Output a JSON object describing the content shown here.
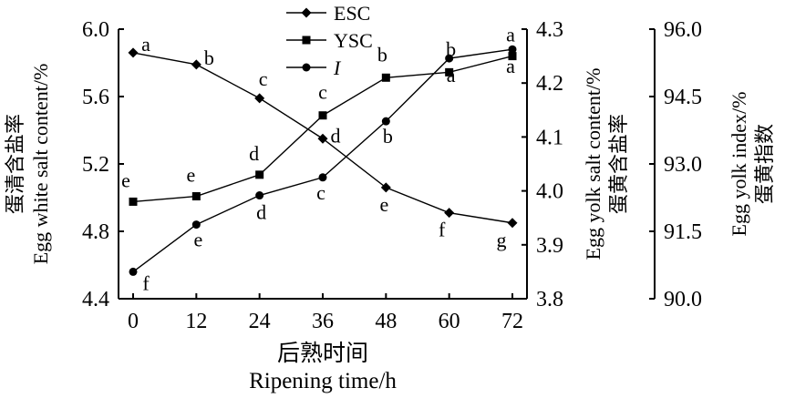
{
  "chart_data": {
    "type": "line",
    "x": [
      0,
      12,
      24,
      36,
      48,
      60,
      72
    ],
    "xlabel": [
      "后熟时间",
      "Ripening time/h"
    ],
    "axes": {
      "left": {
        "label": [
          "蛋清含盐率",
          "Egg white salt content/%"
        ],
        "ylim": [
          4.4,
          6.0
        ],
        "ticks": [
          "4.4",
          "4.8",
          "5.2",
          "5.6",
          "6.0"
        ]
      },
      "right1": {
        "label": [
          "Egg yolk salt content/%",
          "蛋黄含盐率"
        ],
        "ylim": [
          3.8,
          4.3
        ],
        "ticks": [
          "3.8",
          "3.9",
          "4.0",
          "4.1",
          "4.2",
          "4.3"
        ]
      },
      "right2": {
        "label": [
          "Egg yolk index/%",
          "蛋黄指数"
        ],
        "ylim": [
          90.0,
          96.0
        ],
        "ticks": [
          "90.0",
          "91.5",
          "93.0",
          "94.5",
          "96.0"
        ]
      }
    },
    "x_ticks": [
      "0",
      "12",
      "24",
      "36",
      "48",
      "60",
      "72"
    ],
    "grid": false,
    "legend_position": "top-center",
    "series": [
      {
        "name": "ESC",
        "axis": "left",
        "marker": "diamond",
        "values": [
          5.86,
          5.79,
          5.59,
          5.35,
          5.06,
          4.91,
          4.85
        ],
        "labels": [
          "a",
          "b",
          "c",
          "d",
          "e",
          "f",
          "g"
        ]
      },
      {
        "name": "YSC",
        "axis": "right1",
        "marker": "square",
        "values": [
          3.98,
          3.99,
          4.03,
          4.14,
          4.21,
          4.22,
          4.25
        ],
        "labels": [
          "e",
          "e",
          "d",
          "c",
          "b",
          "b",
          "a"
        ]
      },
      {
        "name": "I",
        "axis": "right2",
        "marker": "circle",
        "values": [
          90.6,
          91.65,
          92.3,
          92.7,
          93.95,
          95.35,
          95.55
        ],
        "labels": [
          "f",
          "e",
          "d",
          "c",
          "b",
          "a",
          "a"
        ]
      }
    ]
  }
}
